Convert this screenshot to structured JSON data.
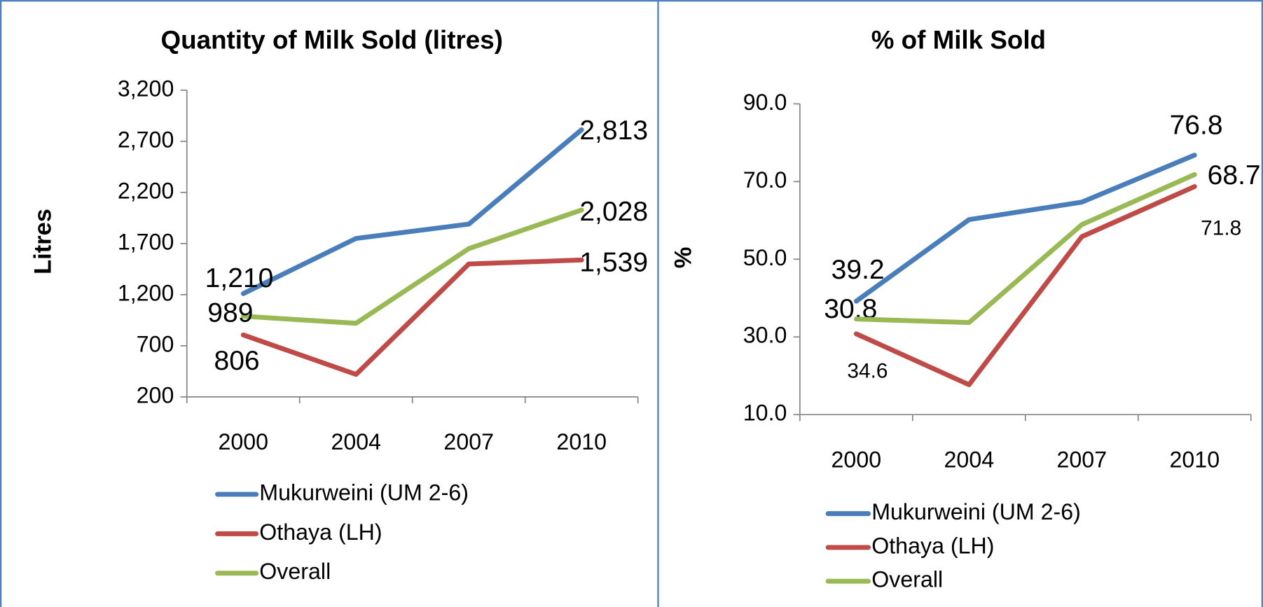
{
  "chart_data": [
    {
      "type": "line",
      "title": "Quantity of Milk Sold (litres)",
      "y_label": "Litres",
      "categories": [
        "2000",
        "2004",
        "2007",
        "2010"
      ],
      "series": [
        {
          "name": "Mukurweini (UM 2-6)",
          "color": "#4a7ebb",
          "values": [
            1210,
            1750,
            1890,
            2813
          ],
          "value_labels": [
            "1,210",
            null,
            null,
            "2,813"
          ]
        },
        {
          "name": "Othaya (LH)",
          "color": "#be4b48",
          "values": [
            806,
            420,
            1500,
            1539
          ],
          "value_labels": [
            "806",
            null,
            null,
            "1,539"
          ]
        },
        {
          "name": "Overall",
          "color": "#98b954",
          "values": [
            989,
            920,
            1650,
            2028
          ],
          "value_labels": [
            "989",
            null,
            null,
            "2,028"
          ]
        }
      ],
      "ylim": [
        200,
        3200
      ],
      "yticks": [
        200,
        700,
        {
          "value": 1200,
          "label": "1,200"
        },
        {
          "value": 1700,
          "label": "1,700"
        },
        {
          "value": 2200,
          "label": "2,200"
        },
        {
          "value": 2700,
          "label": "2,700"
        },
        {
          "value": 3200,
          "label": "3,200"
        }
      ]
    },
    {
      "type": "line",
      "title": "% of Milk Sold",
      "y_label": "%",
      "categories": [
        "2000",
        "2004",
        "2007",
        "2010"
      ],
      "series": [
        {
          "name": "Mukurweini (UM 2-6)",
          "color": "#4a7ebb",
          "values": [
            39.2,
            60.2,
            64.7,
            76.8
          ],
          "value_labels": [
            "39.2",
            null,
            null,
            "76.8"
          ]
        },
        {
          "name": "Othaya (LH)",
          "color": "#be4b48",
          "values": [
            30.8,
            17.7,
            55.8,
            68.7
          ],
          "value_labels": [
            "30.8",
            null,
            null,
            "68.7"
          ]
        },
        {
          "name": "Overall",
          "color": "#98b954",
          "values": [
            34.6,
            33.7,
            58.9,
            71.8
          ],
          "value_labels": [
            "34.6",
            null,
            null,
            "71.8"
          ]
        }
      ],
      "ylim": [
        10,
        90
      ],
      "yticks": [
        {
          "value": 10,
          "label": "10.0"
        },
        {
          "value": 30,
          "label": "30.0"
        },
        {
          "value": 50,
          "label": "50.0"
        },
        {
          "value": 70,
          "label": "70.0"
        },
        {
          "value": 90,
          "label": "90.0"
        }
      ]
    }
  ]
}
